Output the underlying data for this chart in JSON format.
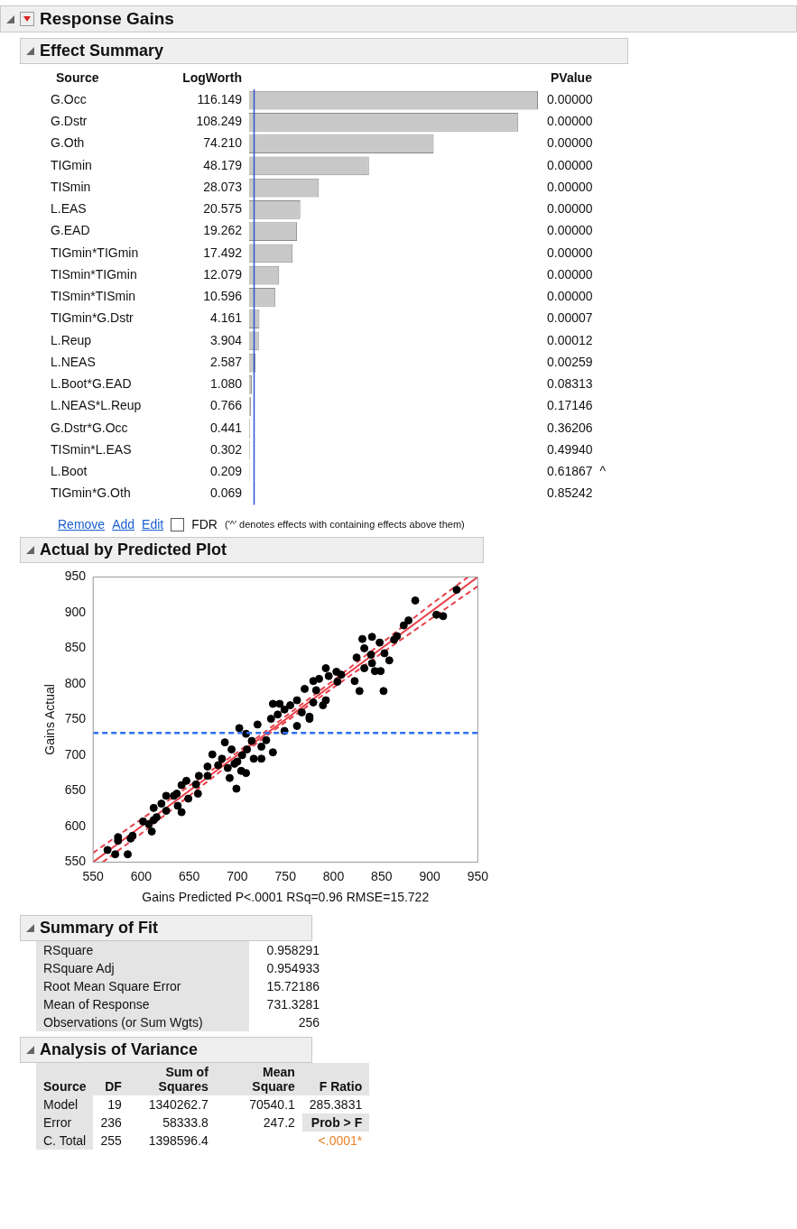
{
  "chart_data": [
    {
      "type": "bar",
      "orientation": "horizontal",
      "title": "Response Gains",
      "subtitle": "Effect Summary",
      "ylabel": "Source",
      "xlabel": "LogWorth",
      "y2label": "PValue",
      "color": "#c8c8c8",
      "categories": [
        "G.Occ",
        "G.Dstr",
        "G.Oth",
        "TIGmin",
        "TISmin",
        "L.EAS",
        "G.EAD",
        "TIGmin*TIGmin",
        "TISmin*TIGmin",
        "TISmin*TISmin",
        "TIGmin*G.Dstr",
        "L.Reup",
        "L.NEAS",
        "L.Boot*G.EAD",
        "L.NEAS*L.Reup",
        "G.Dstr*G.Occ",
        "TISmin*L.EAS",
        "L.Boot",
        "TIGmin*G.Oth"
      ],
      "values": [
        116.149,
        108.249,
        74.21,
        48.179,
        28.073,
        20.575,
        19.262,
        17.492,
        12.079,
        10.596,
        4.161,
        3.904,
        2.587,
        1.08,
        0.766,
        0.441,
        0.302,
        0.209,
        0.069
      ],
      "value_labels": [
        "116.149",
        "108.249",
        "74.210",
        "48.179",
        "28.073",
        "20.575",
        "19.262",
        "17.492",
        "12.079",
        "10.596",
        "4.161",
        "3.904",
        "2.587",
        "1.080",
        "0.766",
        "0.441",
        "0.302",
        "0.209",
        "0.069"
      ],
      "ref_lines": [
        {
          "axis": "x",
          "value": 2,
          "color": "#3355cc"
        }
      ],
      "annotations": [
        "0.00000",
        "0.00000",
        "0.00000",
        "0.00000",
        "0.00000",
        "0.00000",
        "0.00000",
        "0.00000",
        "0.00000",
        "0.00000",
        "0.00007",
        "0.00012",
        "0.00259",
        "0.08313",
        "0.17146",
        "0.36206",
        "0.49940",
        "0.61867  ^",
        "0.85242",
        "Remove",
        "Add",
        "Edit",
        "FDR",
        "('^' denotes effects with containing effects above them)"
      ]
    },
    {
      "type": "scatter",
      "title": "Actual by Predicted Plot",
      "xlabel": "Gains Predicted P<.0001 RSq=0.96 RMSE=15.722",
      "ylabel": "Gains Actual",
      "xlim": [
        550,
        950
      ],
      "ylim": [
        550,
        950
      ],
      "xticks": [
        550,
        600,
        650,
        700,
        750,
        800,
        850,
        900,
        950
      ],
      "yticks": [
        550,
        600,
        650,
        700,
        750,
        800,
        850,
        900,
        950
      ],
      "marker": "circle",
      "ref_lines": [
        {
          "axis": "y",
          "value": 731.3281,
          "color": "#2d6ff0",
          "line_style": "dashed"
        }
      ],
      "series": [
        {
          "type": "scatter",
          "color": "#000000",
          "x": [
            928,
            885,
            907,
            914,
            878,
            873,
            866,
            863,
            830,
            840,
            848,
            832,
            824,
            839,
            853,
            858,
            840,
            832,
            843,
            849,
            792,
            803,
            808,
            795,
            785,
            779,
            804,
            822,
            827,
            852,
            770,
            782,
            779,
            792,
            789,
            762,
            755,
            749,
            742,
            767,
            775,
            737,
            744,
            775,
            762,
            749,
            702,
            709,
            721,
            735,
            730,
            687,
            694,
            674,
            684,
            710,
            717,
            737,
            700,
            725,
            690,
            704,
            709,
            692,
            699,
            669,
            669,
            660,
            657,
            647,
            659,
            649,
            642,
            637,
            638,
            642,
            634,
            626,
            621,
            613,
            626,
            616,
            613,
            608,
            602,
            611,
            591,
            589,
            576,
            576,
            565,
            573,
            586,
            715,
            725,
            705,
            697,
            680
          ],
          "values": [
            932,
            917,
            897,
            895,
            889,
            882,
            867,
            862,
            863,
            866,
            858,
            850,
            837,
            841,
            843,
            833,
            829,
            822,
            818,
            818,
            822,
            817,
            813,
            811,
            807,
            804,
            803,
            804,
            790,
            790,
            793,
            791,
            774,
            777,
            770,
            777,
            770,
            764,
            757,
            760,
            754,
            772,
            772,
            751,
            741,
            734,
            738,
            730,
            743,
            751,
            721,
            718,
            708,
            701,
            695,
            708,
            695,
            704,
            691,
            695,
            682,
            678,
            675,
            668,
            653,
            684,
            671,
            671,
            659,
            664,
            646,
            639,
            658,
            646,
            629,
            620,
            643,
            643,
            632,
            626,
            622,
            613,
            609,
            603,
            607,
            593,
            587,
            583,
            585,
            580,
            567,
            561,
            561,
            720,
            712,
            700,
            688,
            686
          ]
        },
        {
          "type": "line",
          "color": "#e8404a",
          "line_style": "solid",
          "marker": "none",
          "x": [
            550,
            950
          ],
          "values": [
            550,
            950
          ]
        },
        {
          "type": "line",
          "color": "#e8404a",
          "line_style": "dashed",
          "marker": "none",
          "x": [
            560,
            600,
            650,
            700,
            731,
            800,
            850,
            900,
            950
          ],
          "values": [
            550,
            590,
            643,
            696,
            728,
            795,
            843,
            890,
            937
          ]
        },
        {
          "type": "line",
          "color": "#e8404a",
          "line_style": "dashed",
          "marker": "none",
          "x": [
            550,
            600,
            650,
            700,
            731,
            800,
            850,
            900,
            940
          ],
          "values": [
            563,
            610,
            657,
            704,
            735,
            805,
            857,
            910,
            950
          ]
        }
      ]
    },
    {
      "type": "other",
      "title": "Summary of Fit",
      "categories": [
        "RSquare",
        "RSquare Adj",
        "Root Mean Square Error",
        "Mean of Response",
        "Observations (or Sum Wgts)"
      ],
      "values": [
        0.958291,
        0.954933,
        15.72186,
        731.3281,
        256
      ],
      "data_labels": true
    },
    {
      "type": "other",
      "title": "Analysis of Variance",
      "ylabel": "Source",
      "categories": [
        "Model",
        "Error",
        "C. Total"
      ],
      "data_labels": true,
      "series": [
        {
          "name": "DF",
          "values": [
            19,
            236,
            255
          ]
        },
        {
          "name": "Sum of Squares",
          "values": [
            1340262.7,
            58333.8,
            1398596.4
          ]
        },
        {
          "name": "Mean Square",
          "values": [
            70540.1,
            247.2,
            null
          ]
        },
        {
          "name": "F Ratio",
          "values": [
            285.3831,
            null,
            null
          ]
        }
      ],
      "annotations": [
        "Prob > F",
        "<.0001*"
      ]
    }
  ]
}
